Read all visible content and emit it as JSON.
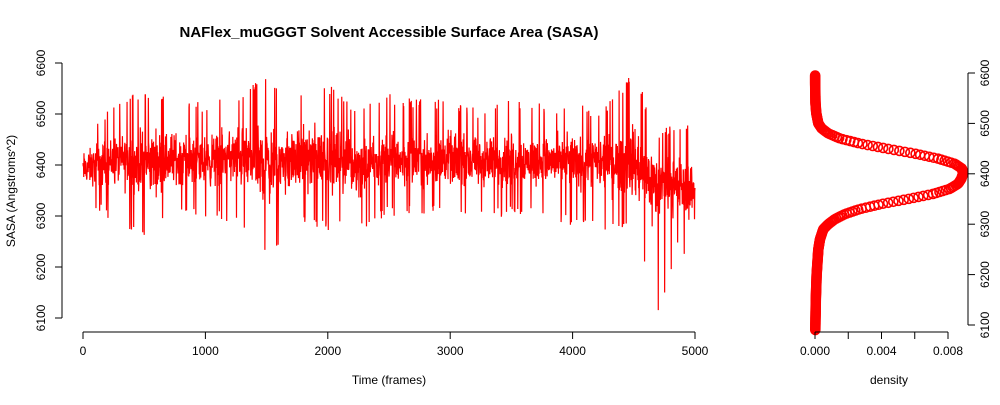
{
  "chart_data": [
    {
      "type": "line",
      "title": "NAFlex_muGGGT Solvent Accessible Surface Area (SASA)",
      "xlabel": "Time (frames)",
      "ylabel": "SASA (Angstroms^2)",
      "xlim": [
        0,
        5000
      ],
      "ylim": [
        6100,
        6600
      ],
      "xticks": [
        0,
        1000,
        2000,
        3000,
        4000,
        5000
      ],
      "yticks": [
        6100,
        6200,
        6300,
        6400,
        6500,
        6600
      ],
      "color": "#ff0000",
      "grid": false,
      "series": [
        {
          "x": [
            0,
            250,
            500,
            750,
            1000,
            1250,
            1500,
            1750,
            2000,
            2250,
            2500,
            2750,
            3000,
            3250,
            3500,
            3750,
            4000,
            4250,
            4500,
            4700,
            4850,
            5000
          ],
          "y": [
            6390,
            6410,
            6405,
            6412,
            6408,
            6418,
            6400,
            6410,
            6415,
            6402,
            6410,
            6408,
            6412,
            6405,
            6410,
            6406,
            6408,
            6404,
            6400,
            6370,
            6360,
            6350
          ],
          "y_max_envelope": [
            6470,
            6520,
            6550,
            6540,
            6520,
            6540,
            6580,
            6540,
            6560,
            6510,
            6540,
            6530,
            6530,
            6510,
            6530,
            6520,
            6520,
            6510,
            6590,
            6460,
            6490,
            6480
          ],
          "y_min_envelope": [
            6320,
            6290,
            6250,
            6300,
            6290,
            6290,
            6215,
            6290,
            6270,
            6270,
            6300,
            6300,
            6300,
            6290,
            6300,
            6300,
            6280,
            6270,
            6270,
            6105,
            6230,
            6200
          ]
        }
      ]
    },
    {
      "type": "density",
      "xlabel": "density",
      "xlim": [
        0,
        0.009
      ],
      "xticks": [
        "0.000",
        "0.004",
        "0.008"
      ],
      "ylim": [
        6100,
        6600
      ],
      "yticks": [
        6100,
        6200,
        6300,
        6400,
        6500,
        6600
      ],
      "color": "#ff0000",
      "marker": "circle",
      "series": [
        {
          "y": [
            6090,
            6150,
            6200,
            6250,
            6270,
            6290,
            6300,
            6310,
            6320,
            6330,
            6340,
            6350,
            6360,
            6370,
            6380,
            6390,
            6400,
            6410,
            6420,
            6430,
            6440,
            6450,
            6460,
            6470,
            6480,
            6490,
            6500,
            6520,
            6540,
            6560,
            6580,
            6595
          ],
          "x": [
            2e-05,
            5e-05,
            0.0001,
            0.0002,
            0.0003,
            0.0005,
            0.0008,
            0.0012,
            0.0018,
            0.0027,
            0.004,
            0.0056,
            0.0071,
            0.0081,
            0.0086,
            0.0088,
            0.0089,
            0.00885,
            0.0084,
            0.0074,
            0.006,
            0.0043,
            0.0027,
            0.0015,
            0.0008,
            0.0004,
            0.0002,
            8e-05,
            3e-05,
            2e-05,
            1e-05,
            1e-05
          ]
        }
      ]
    }
  ]
}
